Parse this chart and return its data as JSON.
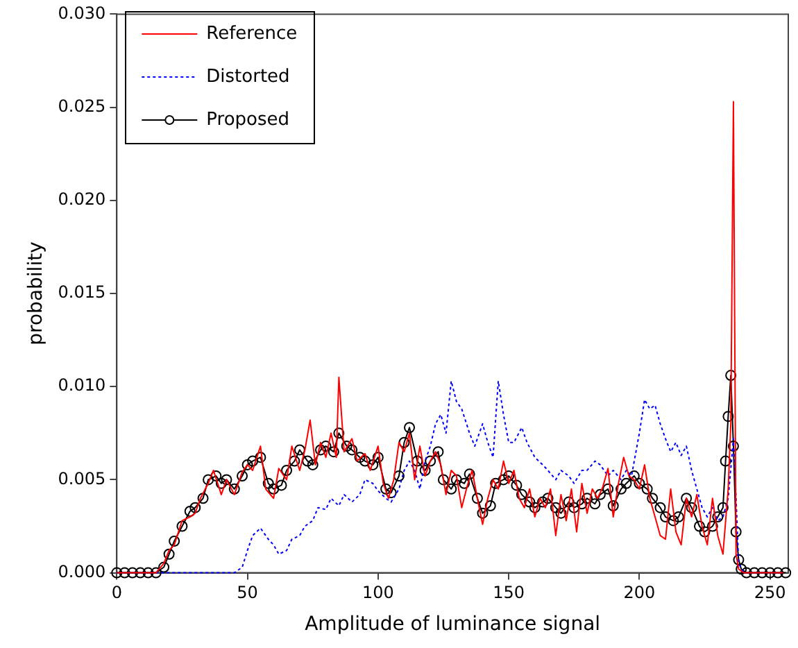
{
  "chart_data": {
    "type": "line",
    "xlabel": "Amplitude of luminance signal",
    "ylabel": "probability",
    "xlim": [
      0,
      257
    ],
    "xticks": [
      0,
      50,
      100,
      150,
      200,
      250
    ],
    "ylim": [
      0,
      0.03
    ],
    "yticks": [
      {
        "value": 0,
        "label": "0.000"
      },
      {
        "value": 0.005,
        "label": "0.005"
      },
      {
        "value": 0.01,
        "label": "0.010"
      },
      {
        "value": 0.015,
        "label": "0.015"
      },
      {
        "value": 0.02,
        "label": "0.020"
      },
      {
        "value": 0.025,
        "label": "0.025"
      },
      {
        "value": 0.03,
        "label": "0.030"
      }
    ],
    "grid": false,
    "legend": "top left",
    "series": [
      {
        "name": "Reference",
        "color": "#ff0000",
        "marker": "none",
        "line_style": "solid",
        "x": [
          0,
          5,
          10,
          15,
          18,
          20,
          22,
          25,
          28,
          30,
          32,
          35,
          37,
          40,
          42,
          45,
          48,
          50,
          52,
          55,
          57,
          60,
          62,
          65,
          67,
          70,
          72,
          74,
          76,
          78,
          80,
          82,
          84,
          85,
          87,
          90,
          92,
          95,
          97,
          100,
          102,
          104,
          106,
          108,
          110,
          112,
          114,
          116,
          118,
          120,
          122,
          124,
          126,
          128,
          130,
          132,
          134,
          136,
          138,
          140,
          142,
          144,
          146,
          148,
          150,
          152,
          154,
          156,
          158,
          160,
          162,
          164,
          166,
          168,
          170,
          172,
          174,
          176,
          178,
          180,
          182,
          184,
          186,
          188,
          190,
          192,
          194,
          196,
          198,
          200,
          202,
          204,
          206,
          208,
          210,
          212,
          214,
          216,
          218,
          220,
          222,
          224,
          226,
          228,
          230,
          232,
          234,
          235,
          236,
          237,
          238,
          240,
          245,
          250,
          255
        ],
        "values": [
          0,
          0,
          0,
          0,
          0.0005,
          0.0012,
          0.0015,
          0.0028,
          0.003,
          0.0032,
          0.004,
          0.0048,
          0.0055,
          0.0042,
          0.005,
          0.0042,
          0.0054,
          0.0058,
          0.0055,
          0.0068,
          0.0045,
          0.004,
          0.0056,
          0.005,
          0.0068,
          0.0055,
          0.0066,
          0.0082,
          0.0058,
          0.007,
          0.0062,
          0.0075,
          0.0062,
          0.0105,
          0.0065,
          0.0072,
          0.006,
          0.0064,
          0.0055,
          0.0068,
          0.0048,
          0.004,
          0.005,
          0.007,
          0.0065,
          0.0075,
          0.005,
          0.0068,
          0.0052,
          0.006,
          0.0065,
          0.0058,
          0.0042,
          0.0055,
          0.0052,
          0.0035,
          0.0046,
          0.0055,
          0.004,
          0.0026,
          0.004,
          0.005,
          0.0045,
          0.006,
          0.0048,
          0.0055,
          0.004,
          0.0035,
          0.0045,
          0.003,
          0.004,
          0.0035,
          0.0045,
          0.002,
          0.0042,
          0.0028,
          0.0045,
          0.0022,
          0.0048,
          0.0032,
          0.0045,
          0.004,
          0.0046,
          0.0056,
          0.003,
          0.0048,
          0.0062,
          0.0052,
          0.005,
          0.0045,
          0.0058,
          0.004,
          0.003,
          0.002,
          0.0018,
          0.0045,
          0.0022,
          0.0015,
          0.004,
          0.003,
          0.0042,
          0.0025,
          0.0015,
          0.004,
          0.002,
          0.001,
          0.0045,
          0.008,
          0.0253,
          0.001,
          0.0002,
          0,
          0,
          0,
          0
        ]
      },
      {
        "name": "Distorted",
        "color": "#0000ff",
        "marker": "none",
        "line_style": "dotted",
        "x": [
          0,
          10,
          20,
          30,
          40,
          45,
          48,
          50,
          52,
          55,
          58,
          60,
          62,
          65,
          67,
          70,
          72,
          75,
          77,
          80,
          82,
          85,
          87,
          90,
          93,
          95,
          98,
          100,
          103,
          105,
          108,
          110,
          112,
          114,
          116,
          118,
          120,
          122,
          124,
          126,
          128,
          130,
          132,
          135,
          137,
          140,
          142,
          144,
          146,
          148,
          150,
          152,
          155,
          157,
          160,
          163,
          165,
          168,
          170,
          173,
          175,
          178,
          180,
          183,
          185,
          188,
          190,
          193,
          195,
          197,
          200,
          202,
          204,
          206,
          208,
          210,
          212,
          214,
          216,
          218,
          220,
          222,
          224,
          226,
          228,
          230,
          232,
          234,
          236,
          237,
          238,
          240,
          245,
          250,
          255
        ],
        "values": [
          0,
          0,
          0,
          0,
          0,
          0,
          0.0003,
          0.0012,
          0.002,
          0.0024,
          0.0018,
          0.0015,
          0.001,
          0.0012,
          0.0018,
          0.002,
          0.0025,
          0.0028,
          0.0035,
          0.0034,
          0.004,
          0.0036,
          0.0042,
          0.0038,
          0.0042,
          0.005,
          0.0048,
          0.0044,
          0.004,
          0.0038,
          0.0045,
          0.0055,
          0.006,
          0.0055,
          0.0045,
          0.006,
          0.0068,
          0.008,
          0.0085,
          0.0075,
          0.0103,
          0.0092,
          0.0088,
          0.0075,
          0.0068,
          0.008,
          0.007,
          0.0062,
          0.0103,
          0.0085,
          0.007,
          0.007,
          0.0078,
          0.007,
          0.0062,
          0.0058,
          0.0055,
          0.005,
          0.0055,
          0.0052,
          0.0048,
          0.0055,
          0.0055,
          0.006,
          0.0058,
          0.0052,
          0.0055,
          0.005,
          0.0055,
          0.0052,
          0.0075,
          0.0093,
          0.0088,
          0.009,
          0.008,
          0.0072,
          0.0065,
          0.007,
          0.0063,
          0.0068,
          0.0055,
          0.0045,
          0.0035,
          0.003,
          0.0035,
          0.0028,
          0.003,
          0.004,
          0.0072,
          0.004,
          0.0005,
          0,
          0,
          0,
          0
        ]
      },
      {
        "name": "Proposed",
        "color": "#000000",
        "marker": "circle",
        "line_style": "solid",
        "x": [
          0,
          3,
          6,
          9,
          12,
          15,
          18,
          20,
          22,
          25,
          28,
          30,
          33,
          35,
          38,
          40,
          42,
          45,
          48,
          50,
          52,
          55,
          58,
          60,
          63,
          65,
          68,
          70,
          73,
          75,
          78,
          80,
          83,
          85,
          88,
          90,
          93,
          95,
          98,
          100,
          103,
          105,
          108,
          110,
          112,
          115,
          118,
          120,
          123,
          125,
          128,
          130,
          133,
          135,
          138,
          140,
          143,
          145,
          148,
          150,
          153,
          155,
          158,
          160,
          163,
          165,
          168,
          170,
          173,
          175,
          178,
          180,
          183,
          185,
          188,
          190,
          193,
          195,
          198,
          200,
          203,
          205,
          208,
          210,
          213,
          215,
          218,
          220,
          223,
          225,
          228,
          230,
          232,
          233,
          234,
          235,
          236,
          237,
          238,
          239,
          241,
          244,
          247,
          250,
          253,
          256
        ],
        "values": [
          0,
          0,
          0,
          0,
          0,
          0,
          0.0003,
          0.001,
          0.0017,
          0.0025,
          0.0033,
          0.0035,
          0.004,
          0.005,
          0.0052,
          0.0048,
          0.005,
          0.0045,
          0.0052,
          0.0058,
          0.006,
          0.0062,
          0.0048,
          0.0045,
          0.0047,
          0.0055,
          0.006,
          0.0066,
          0.006,
          0.0058,
          0.0066,
          0.0068,
          0.0065,
          0.0075,
          0.0068,
          0.0066,
          0.0062,
          0.006,
          0.0058,
          0.0062,
          0.0045,
          0.0043,
          0.0052,
          0.007,
          0.0078,
          0.006,
          0.0055,
          0.006,
          0.0065,
          0.005,
          0.0045,
          0.005,
          0.0048,
          0.0053,
          0.004,
          0.0032,
          0.0036,
          0.0048,
          0.005,
          0.0052,
          0.0047,
          0.0042,
          0.0038,
          0.0035,
          0.0038,
          0.004,
          0.0035,
          0.0032,
          0.0038,
          0.0035,
          0.0037,
          0.004,
          0.0037,
          0.0042,
          0.0045,
          0.0036,
          0.0045,
          0.0048,
          0.0052,
          0.0048,
          0.0045,
          0.004,
          0.0035,
          0.003,
          0.0028,
          0.003,
          0.004,
          0.0035,
          0.0025,
          0.0022,
          0.0025,
          0.003,
          0.0035,
          0.006,
          0.0084,
          0.0106,
          0.0068,
          0.0022,
          0.0007,
          0.0002,
          0,
          0,
          0,
          0,
          0,
          0
        ]
      }
    ]
  }
}
